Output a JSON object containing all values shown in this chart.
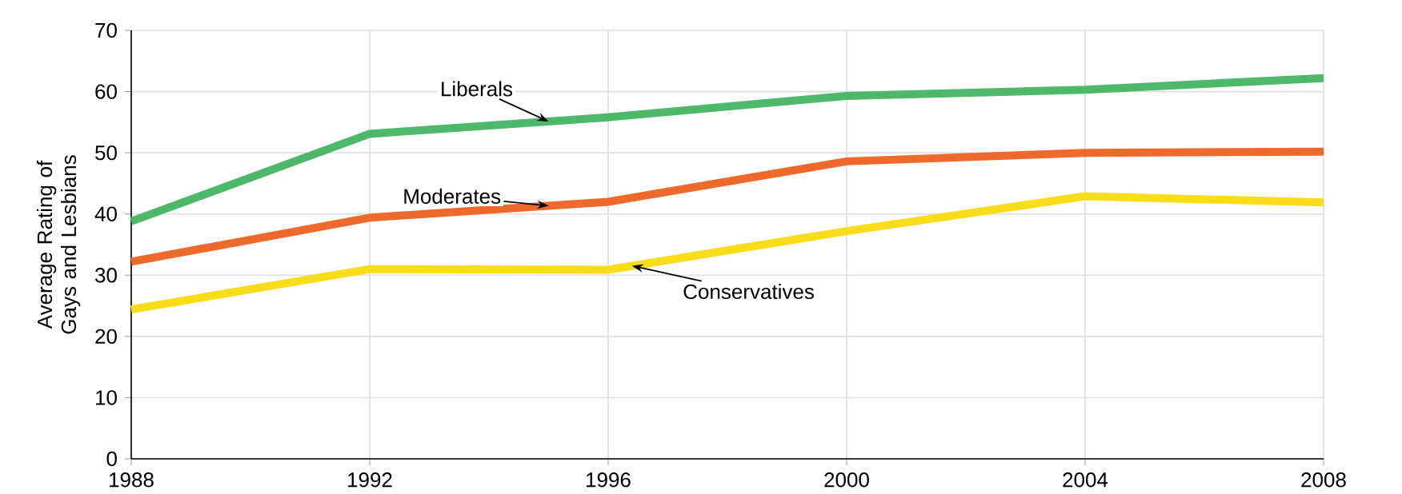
{
  "chart_data": {
    "type": "line",
    "ylabel": "Average Rating of Gays and Lesbians",
    "x": [
      1988,
      1992,
      1996,
      2000,
      2004,
      2008
    ],
    "series": [
      {
        "name": "Liberals",
        "color": "#4cb868",
        "values": [
          38.8,
          53.1,
          55.8,
          59.3,
          60.3,
          62.2
        ]
      },
      {
        "name": "Moderates",
        "color": "#ee6a2c",
        "values": [
          32.2,
          39.4,
          42.0,
          48.6,
          50.0,
          50.2
        ]
      },
      {
        "name": "Conservatives",
        "color": "#f9dc1a",
        "values": [
          24.4,
          31.0,
          30.9,
          37.2,
          42.9,
          41.9
        ]
      }
    ],
    "xlim": [
      1988,
      2008
    ],
    "ylim": [
      0,
      70
    ],
    "xticks": [
      1988,
      1992,
      1996,
      2000,
      2004,
      2008
    ],
    "yticks": [
      0,
      10,
      20,
      30,
      40,
      50,
      60,
      70
    ],
    "grid": true,
    "legend": false,
    "marker": "none",
    "line_style": "solid"
  }
}
